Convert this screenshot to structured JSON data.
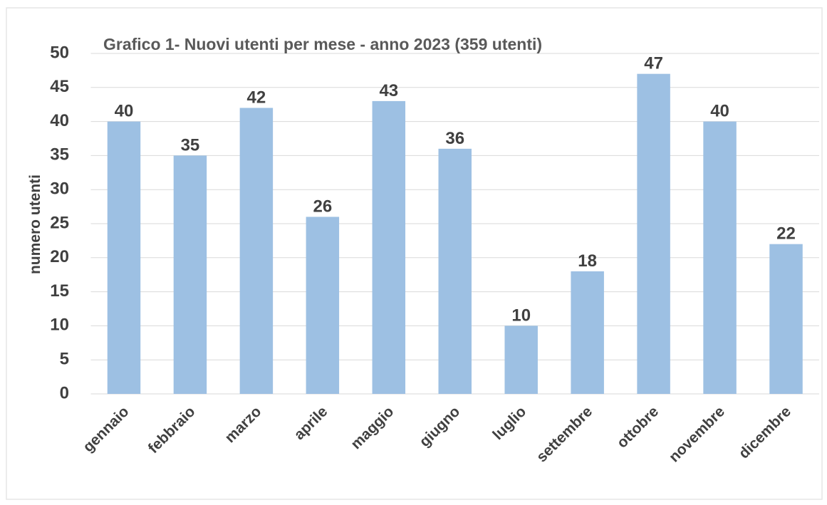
{
  "chart_data": {
    "type": "bar",
    "title": "Grafico 1- Nuovi utenti per mese -  anno 2023  (359 utenti)",
    "y_label": "numero utenti",
    "categories": [
      "gennaio",
      "febbraio",
      "marzo",
      "aprile",
      "maggio",
      "giugno",
      "luglio",
      "settembre",
      "ottobre",
      "novembre",
      "dicembre"
    ],
    "values": [
      40,
      35,
      42,
      26,
      43,
      36,
      10,
      18,
      47,
      40,
      22
    ],
    "color": "#9dc0e3",
    "ylim": [
      0,
      50
    ],
    "yticks": [
      0,
      5,
      10,
      15,
      20,
      25,
      30,
      35,
      40,
      45,
      50
    ],
    "grid": true
  }
}
